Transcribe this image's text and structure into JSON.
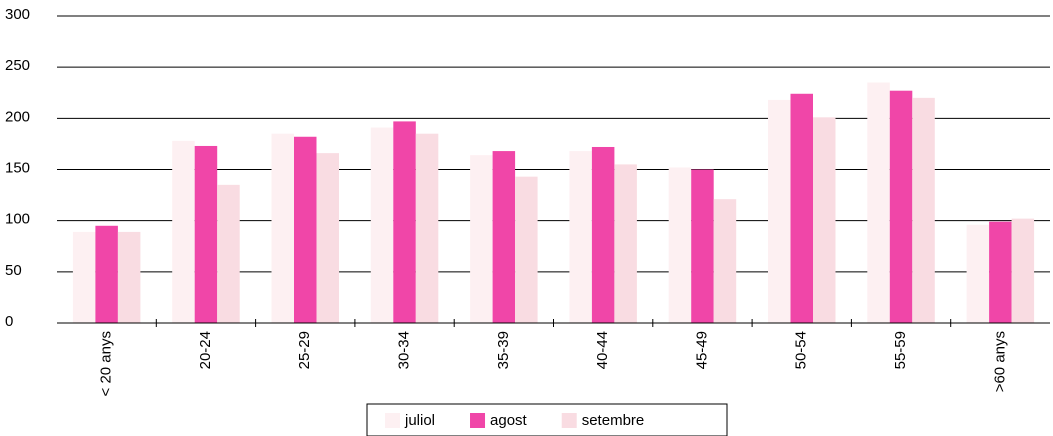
{
  "chart_data": {
    "type": "bar",
    "categories": [
      "< 20 anys",
      "20-24",
      "25-29",
      "30-34",
      "35-39",
      "40-44",
      "45-49",
      "50-54",
      "55-59",
      ">60 anys"
    ],
    "series": [
      {
        "name": "juliol",
        "color": "#fdf0f2",
        "values": [
          89,
          178,
          185,
          191,
          164,
          168,
          152,
          218,
          235,
          96
        ]
      },
      {
        "name": "agost",
        "color": "#f046a8",
        "values": [
          95,
          173,
          182,
          197,
          168,
          172,
          150,
          224,
          227,
          99
        ]
      },
      {
        "name": "setembre",
        "color": "#f9dce2",
        "values": [
          89,
          135,
          166,
          185,
          143,
          155,
          121,
          201,
          220,
          102
        ]
      }
    ],
    "ylim": [
      0,
      300
    ],
    "yticks": [
      0,
      50,
      100,
      150,
      200,
      250,
      300
    ],
    "grid": true,
    "legend": "bottom"
  }
}
